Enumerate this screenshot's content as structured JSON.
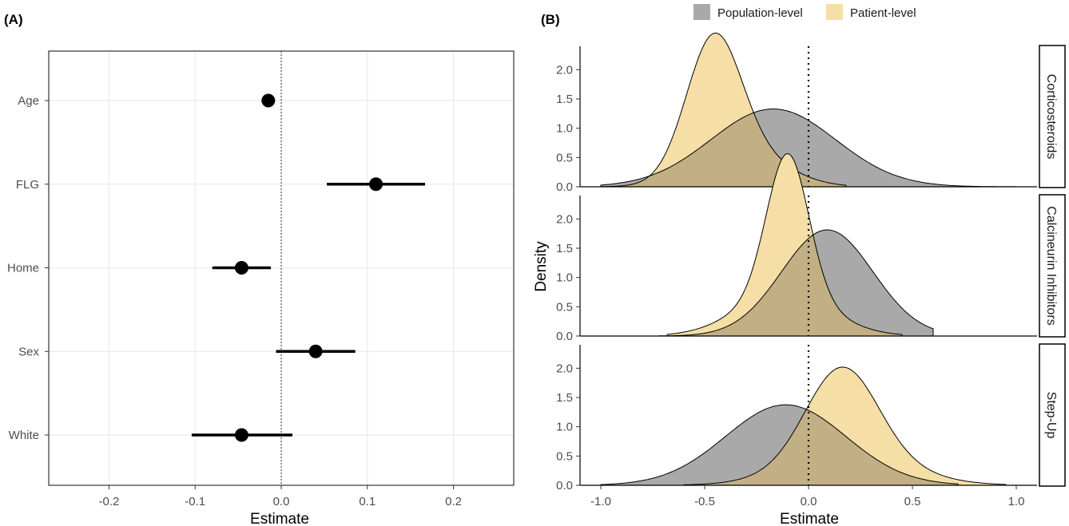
{
  "panels": {
    "a_label": "(A)",
    "b_label": "(B)"
  },
  "chart_data": [
    {
      "type": "scatter",
      "panel": "(A)",
      "subtype": "forest-plot",
      "xlabel": "Estimate",
      "ylabel": "",
      "xlim": [
        -0.27,
        0.27
      ],
      "x_ticks": [
        -0.2,
        -0.1,
        0.0,
        0.1,
        0.2
      ],
      "x_tick_labels": [
        "-0.2",
        "-0.1",
        "0.0",
        "0.1",
        "0.2"
      ],
      "reference_line": 0,
      "grid": true,
      "categories": [
        "Age",
        "FLG",
        "Home",
        "Sex",
        "White"
      ],
      "points": [
        {
          "label": "Age",
          "estimate": -0.015,
          "lower": -0.017,
          "upper": -0.013
        },
        {
          "label": "FLG",
          "estimate": 0.11,
          "lower": 0.053,
          "upper": 0.167
        },
        {
          "label": "Home",
          "estimate": -0.046,
          "lower": -0.08,
          "upper": -0.012
        },
        {
          "label": "Sex",
          "estimate": 0.04,
          "lower": -0.006,
          "upper": 0.086
        },
        {
          "label": "White",
          "estimate": -0.046,
          "lower": -0.104,
          "upper": 0.013
        }
      ],
      "colors": {
        "point": "#000000",
        "grid": "#ebebeb",
        "axis": "#333333"
      }
    },
    {
      "type": "area",
      "panel": "(B)",
      "subtype": "density",
      "xlabel": "Estimate",
      "ylabel": "Density",
      "xlim": [
        -1.1,
        1.1
      ],
      "ylim": [
        0,
        2.4
      ],
      "x_ticks": [
        -1.0,
        -0.5,
        0.0,
        0.5,
        1.0
      ],
      "x_tick_labels": [
        "-1.0",
        "-0.5",
        "0.0",
        "0.5",
        "1.0"
      ],
      "y_ticks": [
        0,
        0.5,
        1.0,
        1.5,
        2.0
      ],
      "y_tick_labels": [
        "0.0",
        "0.5",
        "1.0",
        "1.5",
        "2.0"
      ],
      "reference_line": 0,
      "legend": {
        "placement": "top",
        "entries": [
          {
            "name": "Population-level",
            "color": "#a9a9a9"
          },
          {
            "name": "Patient-level",
            "color": "#f5dfa6"
          }
        ]
      },
      "facets": [
        {
          "name": "Corticosteroids",
          "series": [
            {
              "name": "Population-level",
              "color": "#a9a9a9",
              "x_range": [
                -1.0,
                1.0
              ],
              "components": [
                {
                  "w": 1.0,
                  "mu": -0.17,
                  "sd": 0.3
                }
              ]
            },
            {
              "name": "Patient-level",
              "color": "#f5dfa6",
              "x_range": [
                -1.0,
                0.18
              ],
              "components": [
                {
                  "w": 0.7,
                  "mu": -0.46,
                  "sd": 0.13
                },
                {
                  "w": 0.3,
                  "mu": -0.32,
                  "sd": 0.2
                }
              ]
            }
          ]
        },
        {
          "name": "Calcineurin Inhibitors",
          "series": [
            {
              "name": "Population-level",
              "color": "#a9a9a9",
              "x_range": [
                -0.72,
                0.6
              ],
              "components": [
                {
                  "w": 1.0,
                  "mu": 0.09,
                  "sd": 0.22
                }
              ]
            },
            {
              "name": "Patient-level",
              "color": "#f5dfa6",
              "x_range": [
                -0.68,
                0.45
              ],
              "components": [
                {
                  "w": 0.6,
                  "mu": -0.1,
                  "sd": 0.1
                },
                {
                  "w": 0.4,
                  "mu": -0.12,
                  "sd": 0.22
                }
              ]
            }
          ]
        },
        {
          "name": "Step-Up",
          "series": [
            {
              "name": "Population-level",
              "color": "#a9a9a9",
              "x_range": [
                -1.0,
                0.72
              ],
              "components": [
                {
                  "w": 1.0,
                  "mu": -0.11,
                  "sd": 0.29
                }
              ]
            },
            {
              "name": "Patient-level",
              "color": "#f5dfa6",
              "x_range": [
                -0.6,
                0.95
              ],
              "components": [
                {
                  "w": 0.65,
                  "mu": 0.16,
                  "sd": 0.17
                },
                {
                  "w": 0.35,
                  "mu": 0.2,
                  "sd": 0.28
                }
              ]
            }
          ]
        }
      ],
      "colors": {
        "overlap": "#c2af83",
        "axis": "#000000",
        "strip_border": "#000000"
      }
    }
  ]
}
